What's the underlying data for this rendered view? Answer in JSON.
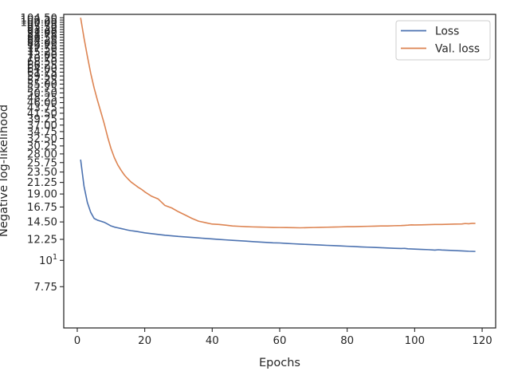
{
  "chart_data": {
    "type": "line",
    "xlabel": "Epochs",
    "ylabel": "Negative log-likelihood",
    "yscale": "log",
    "xlim": [
      -4,
      124
    ],
    "ylim": [
      5.2,
      108
    ],
    "x_ticks": [
      0,
      20,
      40,
      60,
      80,
      100,
      120
    ],
    "y_ticks": [
      {
        "value": 7.75,
        "label": "7.75"
      },
      {
        "value": 10,
        "label": "10^1"
      },
      {
        "value": 12.25,
        "label": "12.25"
      },
      {
        "value": 14.5,
        "label": "14.50"
      },
      {
        "value": 16.75,
        "label": "16.75"
      },
      {
        "value": 19.0,
        "label": "19.00"
      },
      {
        "value": 21.25,
        "label": "21.25"
      },
      {
        "value": 23.5,
        "label": "23.50"
      },
      {
        "value": 25.75,
        "label": "25.75"
      },
      {
        "value": 28.0,
        "label": "28.00"
      },
      {
        "value": 30.25,
        "label": "30.25"
      },
      {
        "value": 32.5,
        "label": "32.50"
      },
      {
        "value": 34.75,
        "label": "34.75"
      },
      {
        "value": 37.0,
        "label": "37.00"
      },
      {
        "value": 39.25,
        "label": "39.25"
      },
      {
        "value": 41.5,
        "label": "41.50"
      },
      {
        "value": 43.75,
        "label": "43.75"
      },
      {
        "value": 46.0,
        "label": "46.00"
      },
      {
        "value": 48.25,
        "label": "48.25"
      },
      {
        "value": 50.5,
        "label": "50.50"
      },
      {
        "value": 52.75,
        "label": "52.75"
      },
      {
        "value": 55.0,
        "label": "55.00"
      },
      {
        "value": 57.25,
        "label": "57.25"
      },
      {
        "value": 59.5,
        "label": "59.50"
      },
      {
        "value": 61.75,
        "label": "61.75"
      },
      {
        "value": 64.0,
        "label": "64.00"
      },
      {
        "value": 66.25,
        "label": "66.25"
      },
      {
        "value": 68.5,
        "label": "68.50"
      },
      {
        "value": 70.75,
        "label": "70.75"
      },
      {
        "value": 73.0,
        "label": "73.00"
      },
      {
        "value": 75.25,
        "label": "75.25"
      },
      {
        "value": 77.5,
        "label": "77.50"
      },
      {
        "value": 79.75,
        "label": "79.75"
      },
      {
        "value": 82.0,
        "label": "82.00"
      },
      {
        "value": 84.25,
        "label": "84.25"
      },
      {
        "value": 86.5,
        "label": "86.50"
      },
      {
        "value": 88.75,
        "label": "88.75"
      },
      {
        "value": 91.0,
        "label": "91.00"
      },
      {
        "value": 93.25,
        "label": "93.25"
      },
      {
        "value": 95.5,
        "label": "95.50"
      },
      {
        "value": 97.75,
        "label": "97.75"
      },
      {
        "value": 100.0,
        "label": "100.00"
      },
      {
        "value": 102.25,
        "label": "102.25"
      },
      {
        "value": 104.5,
        "label": "104.50"
      }
    ],
    "grid": false,
    "legend": "top-right",
    "series": [
      {
        "name": "Loss",
        "color": "#4c72b0",
        "x": [
          1,
          2,
          3,
          4,
          5,
          6,
          7,
          8,
          9,
          10,
          11,
          12,
          13,
          14,
          15,
          16,
          17,
          18,
          19,
          20,
          22,
          24,
          26,
          28,
          30,
          32,
          34,
          36,
          38,
          40,
          42,
          44,
          46,
          48,
          50,
          52,
          54,
          56,
          58,
          60,
          62,
          64,
          66,
          68,
          70,
          72,
          74,
          76,
          78,
          80,
          82,
          84,
          86,
          88,
          90,
          92,
          94,
          96,
          97,
          98,
          100,
          102,
          104,
          106,
          107,
          108,
          110,
          112,
          114,
          116,
          118
        ],
        "y": [
          26.5,
          20.5,
          17.5,
          15.9,
          15.0,
          14.75,
          14.6,
          14.45,
          14.2,
          13.95,
          13.8,
          13.7,
          13.6,
          13.5,
          13.4,
          13.32,
          13.26,
          13.2,
          13.12,
          13.05,
          12.95,
          12.85,
          12.75,
          12.68,
          12.6,
          12.54,
          12.48,
          12.42,
          12.36,
          12.3,
          12.24,
          12.19,
          12.14,
          12.09,
          12.04,
          11.99,
          11.94,
          11.89,
          11.85,
          11.83,
          11.78,
          11.74,
          11.7,
          11.67,
          11.63,
          11.6,
          11.56,
          11.53,
          11.5,
          11.46,
          11.43,
          11.39,
          11.36,
          11.33,
          11.3,
          11.27,
          11.24,
          11.21,
          11.23,
          11.18,
          11.15,
          11.12,
          11.09,
          11.04,
          11.08,
          11.05,
          11.02,
          10.99,
          10.96,
          10.92,
          10.9
        ]
      },
      {
        "name": "Val. loss",
        "color": "#dd8452",
        "x": [
          1,
          2,
          3,
          4,
          5,
          6,
          7,
          8,
          9,
          10,
          11,
          12,
          13,
          14,
          15,
          16,
          17,
          18,
          19,
          20,
          22,
          24,
          26,
          28,
          30,
          32,
          34,
          36,
          38,
          40,
          42,
          44,
          46,
          48,
          50,
          52,
          54,
          56,
          58,
          60,
          62,
          64,
          66,
          68,
          70,
          72,
          74,
          76,
          78,
          80,
          82,
          84,
          86,
          88,
          90,
          92,
          94,
          96,
          98,
          99,
          100,
          102,
          104,
          106,
          108,
          110,
          112,
          114,
          115,
          116,
          117,
          118
        ],
        "y": [
          104.5,
          86.0,
          72.0,
          61.0,
          53.0,
          47.0,
          42.0,
          37.5,
          33.0,
          29.5,
          27.0,
          25.2,
          23.9,
          22.8,
          22.0,
          21.3,
          20.8,
          20.3,
          19.9,
          19.4,
          18.6,
          18.1,
          17.0,
          16.6,
          16.0,
          15.5,
          15.0,
          14.6,
          14.4,
          14.2,
          14.15,
          14.05,
          13.95,
          13.9,
          13.85,
          13.82,
          13.8,
          13.78,
          13.75,
          13.74,
          13.73,
          13.72,
          13.7,
          13.72,
          13.74,
          13.76,
          13.78,
          13.8,
          13.82,
          13.85,
          13.85,
          13.88,
          13.9,
          13.92,
          13.95,
          13.95,
          13.98,
          14.0,
          14.05,
          14.1,
          14.08,
          14.1,
          14.12,
          14.15,
          14.15,
          14.18,
          14.2,
          14.22,
          14.28,
          14.25,
          14.3,
          14.3
        ]
      }
    ]
  }
}
